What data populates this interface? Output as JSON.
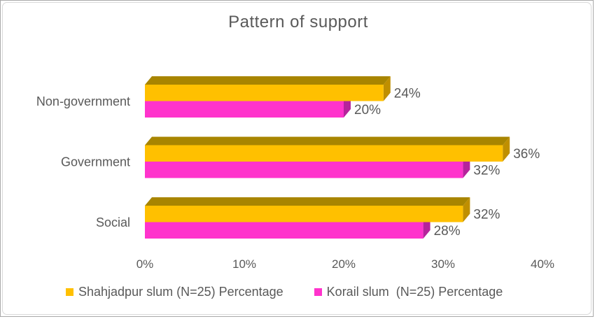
{
  "chart_data": {
    "type": "bar",
    "orientation": "horizontal",
    "style": "3d",
    "title": "Pattern of support",
    "categories": [
      "Non-government",
      "Government",
      "Social"
    ],
    "series": [
      {
        "name": "Shahjadpur slum (N=25) Percentage",
        "color": "#FFC000",
        "top_color": "#A88500",
        "side_color": "#BF8F00",
        "values": [
          24,
          36,
          32
        ]
      },
      {
        "name": "Korail slum  (N=25) Percentage",
        "color": "#FF33CC",
        "top_color": "#A8218B",
        "side_color": "#B5239B",
        "values": [
          20,
          32,
          28
        ]
      }
    ],
    "data_labels": true,
    "data_label_format": "{v}%",
    "x_ticks": [
      "0%",
      "10%",
      "20%",
      "30%",
      "40%"
    ],
    "x_tick_values": [
      0,
      10,
      20,
      30,
      40
    ],
    "xlim": [
      0,
      40
    ],
    "grid": false,
    "legend_position": "bottom",
    "text_color": "#595959"
  }
}
